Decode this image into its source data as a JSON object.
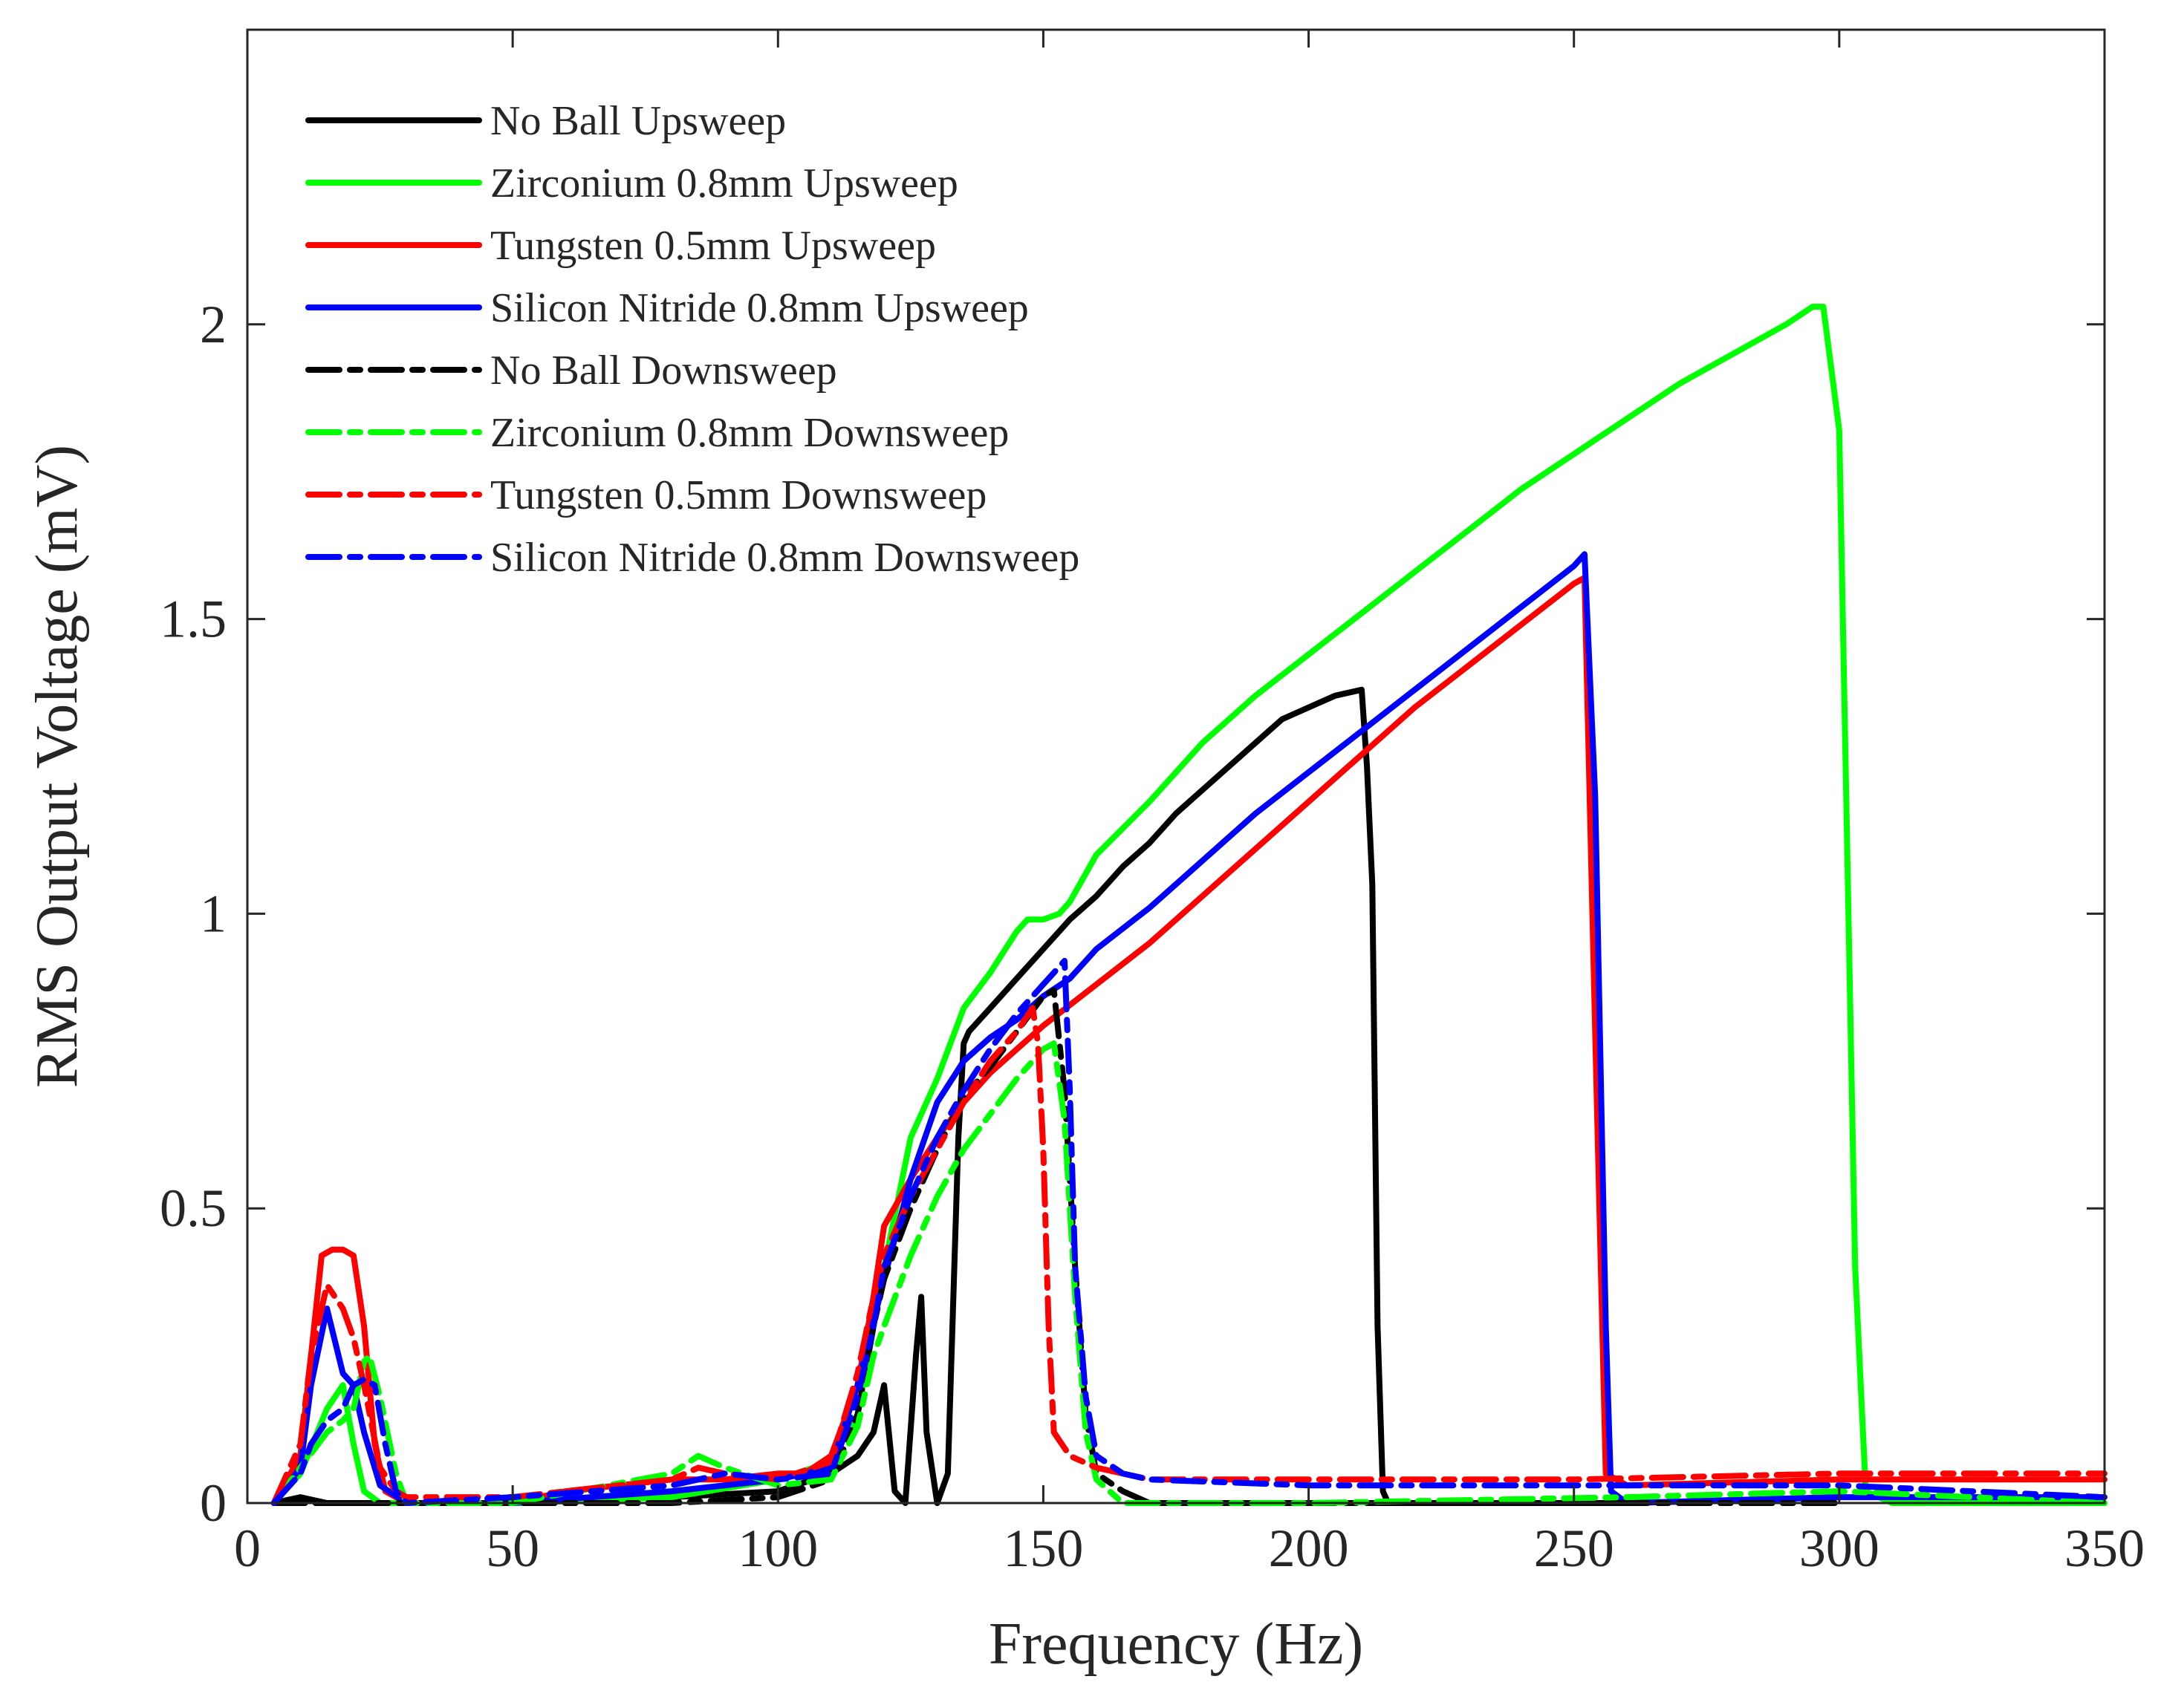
{
  "chart_data": {
    "type": "line",
    "xlabel": "Frequency (Hz)",
    "ylabel": "RMS Output Voltage (mV)",
    "xlim": [
      0,
      350
    ],
    "ylim": [
      0,
      2.5
    ],
    "xticks": [
      0,
      50,
      100,
      150,
      200,
      250,
      300,
      350
    ],
    "yticks": [
      0,
      0.5,
      1,
      1.5,
      2
    ],
    "ytick_labels": [
      "0",
      "0.5",
      "1",
      "1.5",
      "2"
    ],
    "grid": false,
    "legend_position": "top-left",
    "series": [
      {
        "name": "No Ball Upsweep",
        "color": "#000000",
        "style": "solid",
        "x": [
          5,
          10,
          15,
          20,
          30,
          50,
          80,
          100,
          110,
          115,
          118,
          120,
          122,
          124,
          126,
          127,
          128,
          130,
          132,
          134,
          135,
          136,
          140,
          145,
          150,
          155,
          160,
          165,
          170,
          175,
          180,
          185,
          190,
          195,
          200,
          205,
          210,
          211,
          212,
          213,
          214,
          215,
          230,
          260,
          300
        ],
        "y": [
          0,
          0.01,
          0,
          0,
          0,
          0,
          0.01,
          0.02,
          0.05,
          0.08,
          0.12,
          0.2,
          0.02,
          0,
          0.25,
          0.35,
          0.12,
          0,
          0.05,
          0.62,
          0.78,
          0.8,
          0.84,
          0.89,
          0.94,
          0.99,
          1.03,
          1.08,
          1.12,
          1.17,
          1.21,
          1.25,
          1.29,
          1.33,
          1.35,
          1.37,
          1.38,
          1.25,
          1.05,
          0.3,
          0.02,
          0,
          0,
          0,
          0.01
        ]
      },
      {
        "name": "Zirconium 0.8mm Upsweep",
        "color": "#00ff00",
        "style": "solid",
        "x": [
          5,
          10,
          15,
          18,
          20,
          22,
          25,
          30,
          50,
          80,
          100,
          110,
          115,
          118,
          120,
          125,
          130,
          135,
          140,
          145,
          147,
          150,
          153,
          155,
          160,
          170,
          180,
          190,
          200,
          210,
          220,
          230,
          240,
          250,
          260,
          270,
          280,
          290,
          295,
          297,
          300,
          303,
          305,
          310,
          350
        ],
        "y": [
          0,
          0.05,
          0.16,
          0.2,
          0.1,
          0.02,
          0,
          0,
          0,
          0.01,
          0.04,
          0.07,
          0.15,
          0.3,
          0.4,
          0.62,
          0.72,
          0.84,
          0.9,
          0.97,
          0.99,
          0.99,
          1.0,
          1.02,
          1.1,
          1.19,
          1.29,
          1.37,
          1.44,
          1.51,
          1.58,
          1.65,
          1.72,
          1.78,
          1.84,
          1.9,
          1.95,
          2.0,
          2.03,
          2.03,
          1.82,
          0.4,
          0.02,
          0,
          0
        ]
      },
      {
        "name": "Tungsten 0.5mm Upsweep",
        "color": "#ff0000",
        "style": "solid",
        "x": [
          5,
          10,
          12,
          14,
          16,
          18,
          20,
          22,
          24,
          26,
          30,
          50,
          60,
          70,
          80,
          90,
          100,
          105,
          110,
          115,
          118,
          120,
          125,
          130,
          135,
          140,
          145,
          150,
          160,
          170,
          180,
          190,
          200,
          210,
          220,
          230,
          240,
          250,
          252,
          254,
          256,
          260,
          300,
          350
        ],
        "y": [
          0,
          0.08,
          0.25,
          0.42,
          0.43,
          0.43,
          0.42,
          0.3,
          0.1,
          0.02,
          0,
          0,
          0.02,
          0.03,
          0.04,
          0.04,
          0.05,
          0.05,
          0.08,
          0.2,
          0.35,
          0.47,
          0.55,
          0.62,
          0.68,
          0.73,
          0.77,
          0.81,
          0.88,
          0.95,
          1.03,
          1.11,
          1.19,
          1.27,
          1.35,
          1.42,
          1.49,
          1.56,
          1.57,
          0.8,
          0.05,
          0.03,
          0.04,
          0.04
        ]
      },
      {
        "name": "Silicon Nitride 0.8mm Upsweep",
        "color": "#0000ff",
        "style": "solid",
        "x": [
          5,
          10,
          12,
          15,
          18,
          20,
          22,
          25,
          30,
          50,
          80,
          100,
          110,
          115,
          120,
          125,
          130,
          135,
          140,
          145,
          150,
          155,
          160,
          170,
          180,
          190,
          200,
          210,
          220,
          230,
          240,
          250,
          252,
          254,
          256,
          257,
          260,
          300,
          350
        ],
        "y": [
          0,
          0.06,
          0.2,
          0.33,
          0.22,
          0.2,
          0.12,
          0.03,
          0,
          0,
          0.02,
          0.04,
          0.06,
          0.2,
          0.38,
          0.55,
          0.68,
          0.75,
          0.79,
          0.82,
          0.86,
          0.89,
          0.94,
          1.01,
          1.09,
          1.17,
          1.24,
          1.31,
          1.38,
          1.45,
          1.52,
          1.59,
          1.61,
          1.2,
          0.3,
          0.02,
          0,
          0.01,
          0.01
        ]
      },
      {
        "name": "No Ball Downsweep",
        "color": "#000000",
        "style": "dashed",
        "x": [
          5,
          30,
          60,
          80,
          100,
          110,
          115,
          118,
          120,
          125,
          130,
          135,
          140,
          145,
          150,
          152,
          154,
          156,
          158,
          160,
          165,
          170,
          200,
          260,
          300
        ],
        "y": [
          0,
          0,
          0,
          0,
          0.01,
          0.04,
          0.15,
          0.3,
          0.38,
          0.5,
          0.6,
          0.69,
          0.74,
          0.8,
          0.86,
          0.87,
          0.7,
          0.4,
          0.15,
          0.05,
          0.02,
          0,
          0,
          0,
          0
        ]
      },
      {
        "name": "Zirconium 0.8mm Downsweep",
        "color": "#00ff00",
        "style": "dashed",
        "x": [
          5,
          10,
          15,
          18,
          20,
          22,
          23,
          25,
          28,
          30,
          50,
          80,
          85,
          90,
          100,
          110,
          115,
          118,
          120,
          125,
          130,
          135,
          140,
          145,
          150,
          152,
          154,
          156,
          158,
          160,
          165,
          170,
          200,
          260,
          300,
          350
        ],
        "y": [
          0,
          0.06,
          0.12,
          0.14,
          0.16,
          0.24,
          0.25,
          0.18,
          0.05,
          0,
          0,
          0.05,
          0.08,
          0.06,
          0.03,
          0.04,
          0.13,
          0.25,
          0.3,
          0.42,
          0.52,
          0.6,
          0.66,
          0.72,
          0.77,
          0.78,
          0.65,
          0.35,
          0.12,
          0.04,
          0,
          0,
          0,
          0.01,
          0.02,
          0
        ]
      },
      {
        "name": "Tungsten 0.5mm Downsweep",
        "color": "#ff0000",
        "style": "dashed",
        "x": [
          5,
          10,
          12,
          15,
          18,
          20,
          22,
          25,
          28,
          30,
          50,
          80,
          85,
          90,
          100,
          110,
          115,
          118,
          120,
          125,
          130,
          135,
          140,
          145,
          148,
          149,
          150,
          151,
          152,
          155,
          160,
          165,
          170,
          200,
          250,
          300,
          350
        ],
        "y": [
          0,
          0.1,
          0.25,
          0.37,
          0.33,
          0.28,
          0.2,
          0.06,
          0.02,
          0.01,
          0.01,
          0.04,
          0.06,
          0.05,
          0.04,
          0.07,
          0.22,
          0.35,
          0.42,
          0.52,
          0.6,
          0.68,
          0.75,
          0.8,
          0.84,
          0.78,
          0.6,
          0.3,
          0.12,
          0.08,
          0.06,
          0.05,
          0.04,
          0.04,
          0.04,
          0.05,
          0.05
        ]
      },
      {
        "name": "Silicon Nitride 0.8mm Downsweep",
        "color": "#0000ff",
        "style": "dashed",
        "x": [
          5,
          10,
          12,
          15,
          18,
          20,
          22,
          24,
          26,
          28,
          30,
          50,
          80,
          90,
          100,
          110,
          115,
          118,
          120,
          125,
          130,
          135,
          140,
          145,
          150,
          152,
          154,
          155,
          156,
          158,
          160,
          165,
          170,
          200,
          250,
          300,
          350
        ],
        "y": [
          0,
          0.05,
          0.1,
          0.14,
          0.16,
          0.2,
          0.21,
          0.2,
          0.1,
          0.02,
          0,
          0.01,
          0.03,
          0.05,
          0.04,
          0.05,
          0.18,
          0.3,
          0.4,
          0.52,
          0.62,
          0.7,
          0.77,
          0.83,
          0.88,
          0.9,
          0.92,
          0.7,
          0.4,
          0.18,
          0.08,
          0.05,
          0.04,
          0.03,
          0.03,
          0.03,
          0.01
        ]
      }
    ]
  }
}
